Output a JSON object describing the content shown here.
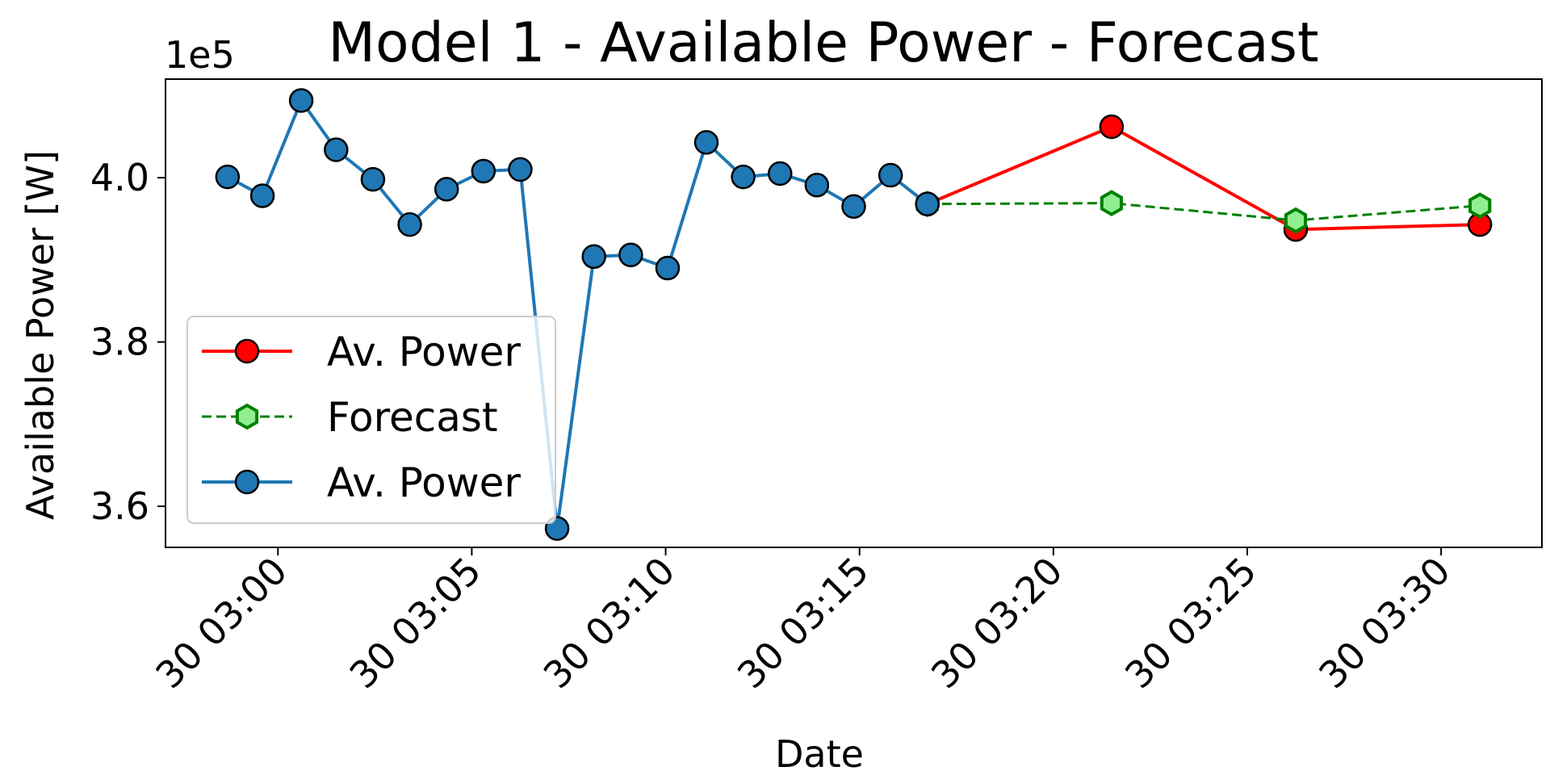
{
  "chart_data": {
    "type": "line",
    "title": "Model 1 - Available Power - Forecast",
    "xlabel": "Date",
    "ylabel": "Available Power [W]",
    "y_offset_label": "1e5",
    "x_tick_labels": [
      "30 03:00",
      "30 03:05",
      "30 03:10",
      "30 03:15",
      "30 03:20",
      "30 03:25",
      "30 03:30"
    ],
    "x_ticks_minutes": [
      0,
      5,
      10,
      15,
      20,
      25,
      30
    ],
    "y_tick_labels": [
      "3.6",
      "3.8",
      "4.0"
    ],
    "y_ticks": [
      3.6,
      3.8,
      4.0
    ],
    "xlim": [
      -2.9,
      32.6
    ],
    "ylim": [
      3.55,
      4.12
    ],
    "grid": false,
    "legend_position": "lower-left",
    "series": [
      {
        "name": "Av. Power",
        "style": "red-solid-circle",
        "color": "#ff0000",
        "marker_fill": "#ff0000",
        "x": [
          16.75,
          21.5,
          26.25,
          31.0
        ],
        "y": [
          3.968,
          4.062,
          3.937,
          3.943
        ]
      },
      {
        "name": "Forecast",
        "style": "green-dashed-hexagon",
        "color": "#008000",
        "marker_fill": "#90ee90",
        "x": [
          16.75,
          21.5,
          26.25,
          31.0
        ],
        "y": [
          3.968,
          3.969,
          3.948,
          3.966
        ]
      },
      {
        "name": "Av. Power",
        "style": "blue-solid-circle",
        "color": "#1f77b4",
        "marker_fill": "#1f77b4",
        "x": [
          -1.3,
          -0.4,
          0.6,
          1.5,
          2.45,
          3.4,
          4.35,
          5.3,
          6.25,
          7.2,
          8.15,
          9.1,
          10.05,
          11.05,
          12.0,
          12.95,
          13.9,
          14.85,
          15.8,
          16.75
        ],
        "y": [
          4.001,
          3.978,
          4.094,
          4.034,
          3.998,
          3.943,
          3.986,
          4.008,
          4.01,
          3.573,
          3.904,
          3.906,
          3.89,
          4.043,
          4.001,
          4.005,
          3.991,
          3.965,
          4.003,
          3.968
        ]
      }
    ]
  }
}
